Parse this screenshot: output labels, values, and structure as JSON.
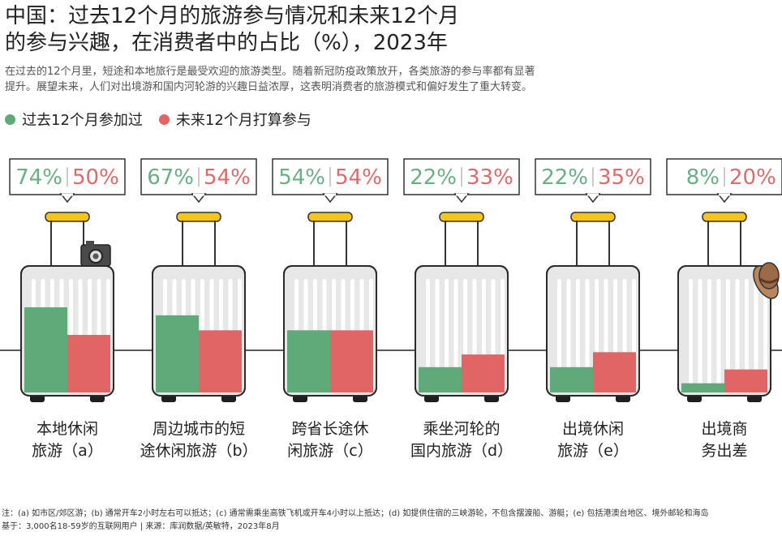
{
  "title_line1": "中国：过去12个月的旅游参与情况和未来12个月",
  "title_line2": "的参与兴趣，在消费者中的占比（%），2023年",
  "subtitle_line1": "在过去的12个月里，短途和本地旅行是最受欢迎的旅游类型。随着新冠防疫政策放开，各类旅游的参与率都有显著",
  "subtitle_line2": "提升。展望未来，人们对出境游和国内河轮游的兴趣日益浓厚，这表明消费者的旅游模式和偏好发生了重大转变。",
  "legend": {
    "past": "过去12个月参加过",
    "future": "未来12个月打算参与"
  },
  "colors": {
    "past": "#5faa78",
    "future": "#e26565",
    "past_text": "#68b084",
    "future_text": "#e06a6a",
    "handle": "#f5c518",
    "suitcase_body": "#e7e7e7",
    "suitcase_outline": "#2b2b2b"
  },
  "chart_data": {
    "type": "bar",
    "categories": [
      [
        "本地休闲",
        "旅游（a）"
      ],
      [
        "周边城市的短",
        "途休闲旅游（b）"
      ],
      [
        "跨省长途休",
        "闲旅游（c）"
      ],
      [
        "乘坐河轮的",
        "国内旅游（d）"
      ],
      [
        "出境休闲",
        "旅游（e）"
      ],
      [
        "出境商",
        "务出差"
      ]
    ],
    "series": [
      {
        "name": "过去12个月参加过",
        "values": [
          74,
          67,
          54,
          22,
          22,
          8
        ]
      },
      {
        "name": "未来12个月打算参与",
        "values": [
          50,
          54,
          54,
          33,
          35,
          20
        ]
      }
    ],
    "value_suffix": "%",
    "ylim": [
      0,
      100
    ],
    "decorations": [
      "camera-icon",
      "",
      "",
      "",
      "",
      "hat-icon"
    ]
  },
  "notes": {
    "line1": "注：(a) 如市区/郊区游；(b) 通常开车2小时左右可以抵达；(c) 通常需乘坐高铁飞机或开车4小时以上抵达；(d) 如提供住宿的三峡游轮，不包含摆渡船、游艇；(e) 包括港澳台地区、境外邮轮和海岛",
    "line2": "基于：3,000名18-59岁的互联网用户 | 来源：库润数据/英敏特，2023年8月"
  }
}
